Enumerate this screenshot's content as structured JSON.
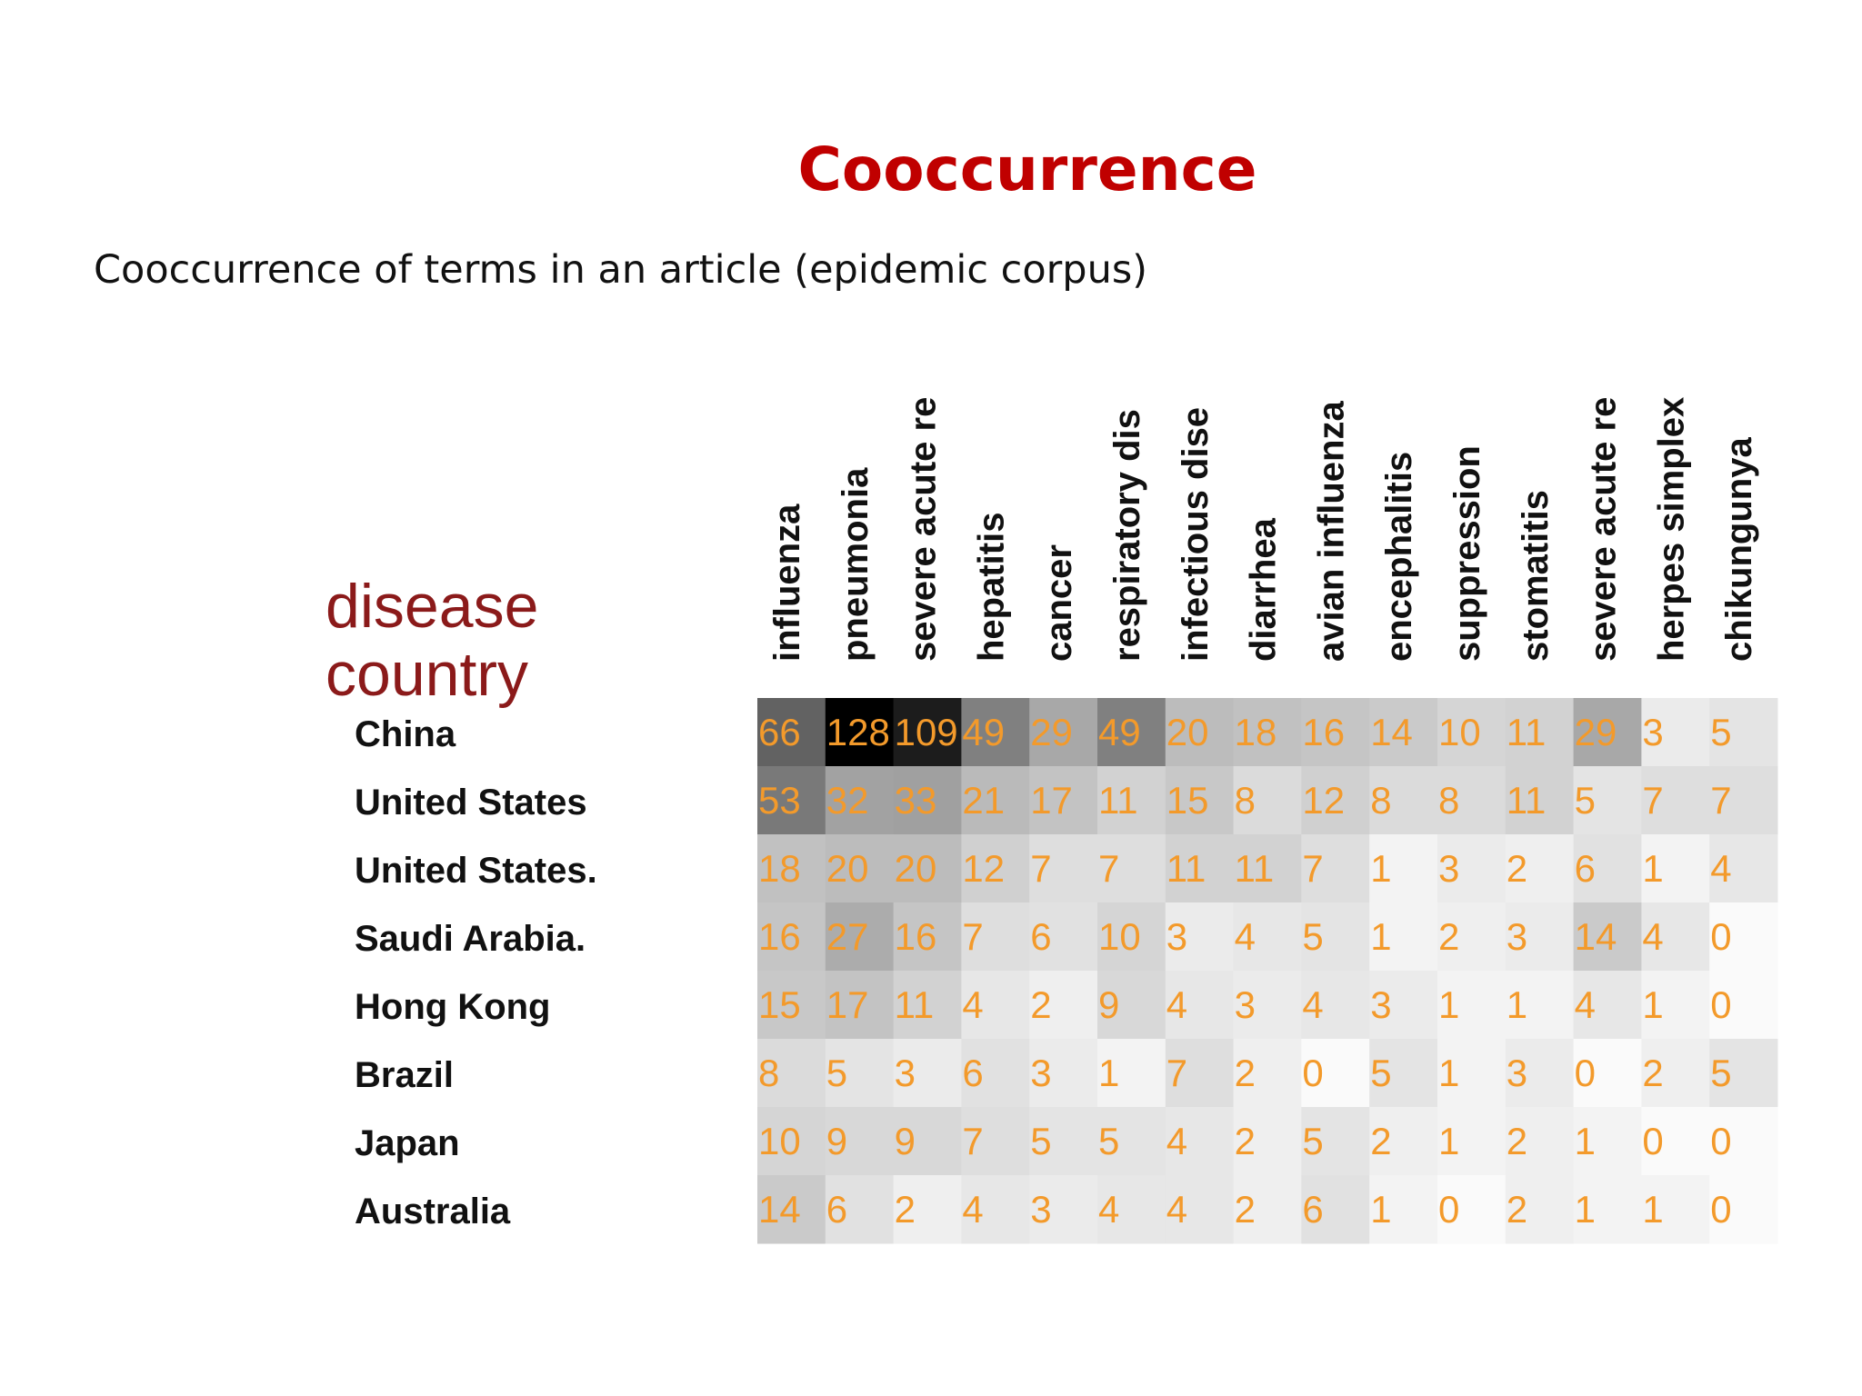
{
  "slide": {
    "title": "Cooccurrence",
    "subtitle": "Cooccurrence of terms in an article (epidemic corpus)"
  },
  "colors": {
    "title": "#c00000",
    "axis_title": "#8b1a1a",
    "cell_text": "#f39a2b",
    "cell_dark": "#000000",
    "cell_light": "#ffffff"
  },
  "chart_data": {
    "type": "heatmap",
    "row_axis_title": "country",
    "col_axis_title": "disease",
    "columns": [
      "influenza",
      "pneumonia",
      "severe acute re",
      "hepatitis",
      "cancer",
      "respiratory dis",
      "infectious dise",
      "diarrhea",
      "avian influenza",
      "encephalitis",
      "suppression",
      "stomatitis",
      "severe acute re",
      "herpes simplex",
      "chikungunya"
    ],
    "rows": [
      "China",
      "United States",
      "United States.",
      "Saudi Arabia.",
      "Hong Kong",
      "Brazil",
      "Japan",
      "Australia"
    ],
    "values": [
      [
        66,
        128,
        109,
        49,
        29,
        49,
        20,
        18,
        16,
        14,
        10,
        11,
        29,
        3,
        5
      ],
      [
        53,
        32,
        33,
        21,
        17,
        11,
        15,
        8,
        12,
        8,
        8,
        11,
        5,
        7,
        7
      ],
      [
        18,
        20,
        20,
        12,
        7,
        7,
        11,
        11,
        7,
        1,
        3,
        2,
        6,
        1,
        4
      ],
      [
        16,
        27,
        16,
        7,
        6,
        10,
        3,
        4,
        5,
        1,
        2,
        3,
        14,
        4,
        0
      ],
      [
        15,
        17,
        11,
        4,
        2,
        9,
        4,
        3,
        4,
        3,
        1,
        1,
        4,
        1,
        0
      ],
      [
        8,
        5,
        3,
        6,
        3,
        1,
        7,
        2,
        0,
        5,
        1,
        3,
        0,
        2,
        5
      ],
      [
        10,
        9,
        9,
        7,
        5,
        5,
        4,
        2,
        5,
        2,
        1,
        2,
        1,
        0,
        0
      ],
      [
        14,
        6,
        2,
        4,
        3,
        4,
        4,
        2,
        6,
        1,
        0,
        2,
        1,
        1,
        0
      ]
    ]
  }
}
